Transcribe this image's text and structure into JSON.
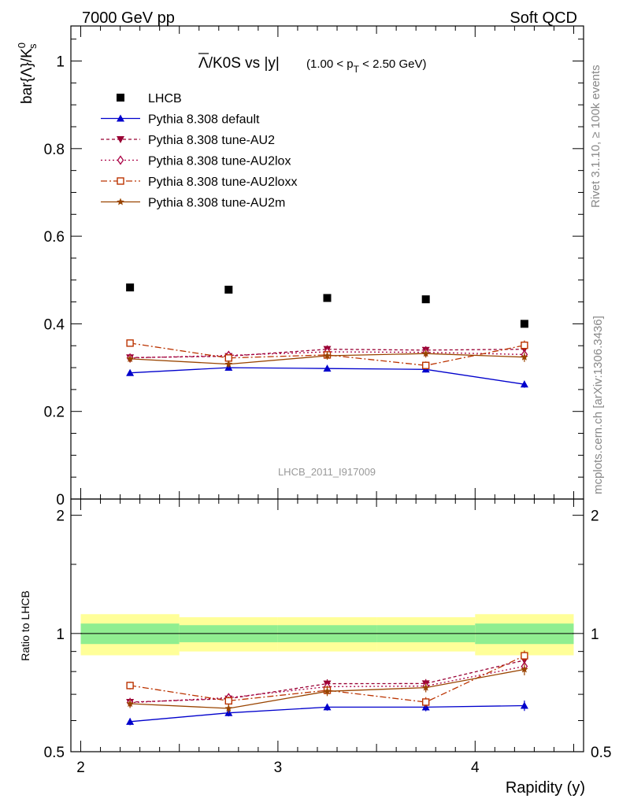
{
  "header": {
    "left": "7000 GeV pp",
    "right": "Soft QCD"
  },
  "title": {
    "main": "Λ/K0S vs |y|",
    "bar_symbol": "Λ",
    "rest": "/K0S vs |y|",
    "sub_open": "(1.00 < p",
    "sub_index": "T",
    "sub_close": " < 2.50 GeV)"
  },
  "ylabel_upper": {
    "main": "bar{Λ}/K",
    "sup": "0",
    "sub": "s"
  },
  "ylabel_lower": "Ratio to LHCB",
  "xlabel": "Rapidity (y)",
  "watermark": "LHCB_2011_I917009",
  "side_rivet": "Rivet 3.1.10, ≥ 100k events",
  "side_mcplots": "mcplots.cern.ch [arXiv:1306.3436]",
  "upper_ticks": [
    "0",
    "0.2",
    "0.4",
    "0.6",
    "0.8",
    "1"
  ],
  "lower_ticks": [
    "0.5",
    "1",
    "2"
  ],
  "x_ticks": [
    "2",
    "3",
    "4"
  ],
  "colors": {
    "data": "#000000",
    "default": "#0000cc",
    "au2": "#990033",
    "au2lox": "#aa0044",
    "au2loxx": "#bb3300",
    "au2m": "#994400",
    "band_inner": "#90ee90",
    "band_outer": "#ffff99"
  },
  "chart_data": {
    "type": "line",
    "x_bin_edges": [
      2.0,
      2.5,
      3.0,
      3.5,
      4.0,
      4.5
    ],
    "x": [
      2.25,
      2.75,
      3.25,
      3.75,
      4.25
    ],
    "xlim": [
      1.95,
      4.55
    ],
    "ylim_upper": [
      0,
      1.08
    ],
    "ylim_lower": [
      0.5,
      2.2
    ],
    "lower_scale": "log",
    "series": [
      {
        "key": "data",
        "name": "LHCB",
        "marker": "square",
        "values": [
          0.483,
          0.478,
          0.459,
          0.456,
          0.4
        ]
      },
      {
        "key": "default",
        "name": "Pythia 8.308 default",
        "marker": "triangle",
        "dash": "",
        "values": [
          0.288,
          0.3,
          0.298,
          0.296,
          0.262
        ],
        "errors": [
          0.006,
          0.006,
          0.006,
          0.007,
          0.008
        ]
      },
      {
        "key": "au2",
        "name": "Pythia 8.308 tune-AU2",
        "marker": "triangle-down",
        "dash": "4,3",
        "values": [
          0.323,
          0.326,
          0.342,
          0.34,
          0.342
        ],
        "errors": [
          0.008,
          0.008,
          0.009,
          0.009,
          0.011
        ]
      },
      {
        "key": "au2lox",
        "name": "Pythia 8.308 tune-AU2lox",
        "marker": "diamond-open",
        "dash": "2,3",
        "values": [
          0.322,
          0.328,
          0.336,
          0.335,
          0.33
        ],
        "errors": [
          0.008,
          0.008,
          0.009,
          0.009,
          0.011
        ]
      },
      {
        "key": "au2loxx",
        "name": "Pythia 8.308 tune-AU2loxx",
        "marker": "square-open",
        "dash": "8,3,2,3",
        "values": [
          0.356,
          0.322,
          0.329,
          0.305,
          0.351
        ],
        "errors": [
          0.008,
          0.008,
          0.009,
          0.009,
          0.011
        ]
      },
      {
        "key": "au2m",
        "name": "Pythia 8.308 tune-AU2m",
        "marker": "star",
        "dash": "",
        "values": [
          0.32,
          0.308,
          0.327,
          0.332,
          0.324
        ],
        "errors": [
          0.008,
          0.008,
          0.009,
          0.009,
          0.011
        ]
      }
    ],
    "data_band_inner": [
      0.06,
      0.05,
      0.05,
      0.05,
      0.06
    ],
    "data_band_outer": [
      0.12,
      0.1,
      0.1,
      0.1,
      0.12
    ]
  }
}
